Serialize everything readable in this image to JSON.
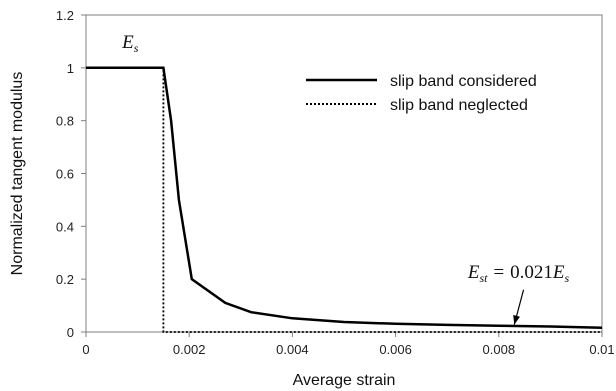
{
  "chart_data": {
    "type": "line",
    "title": "",
    "xlabel": "Average strain",
    "ylabel": "Normalized tangent modulus",
    "xlim": [
      0,
      0.01
    ],
    "ylim": [
      0,
      1.2
    ],
    "x_ticks": [
      0,
      0.002,
      0.004,
      0.006,
      0.008,
      0.01
    ],
    "x_tick_labels": [
      "0",
      "0.002",
      "0.004",
      "0.006",
      "0.008",
      "0.01"
    ],
    "y_ticks": [
      0,
      0.2,
      0.4,
      0.6,
      0.8,
      1,
      1.2
    ],
    "y_tick_labels": [
      "0",
      "0.2",
      "0.4",
      "0.6",
      "0.8",
      "1",
      "1.2"
    ],
    "grid": false,
    "legend_position": "top-right",
    "series": [
      {
        "name": "slip band considered",
        "style": "solid",
        "color": "#000000",
        "points": [
          [
            0,
            1
          ],
          [
            0.0015,
            1
          ],
          [
            0.00165,
            0.8
          ],
          [
            0.0018,
            0.5
          ],
          [
            0.00205,
            0.2
          ],
          [
            0.0027,
            0.11
          ],
          [
            0.0032,
            0.075
          ],
          [
            0.004,
            0.052
          ],
          [
            0.005,
            0.038
          ],
          [
            0.006,
            0.031
          ],
          [
            0.007,
            0.027
          ],
          [
            0.008,
            0.024
          ],
          [
            0.009,
            0.021
          ],
          [
            0.01,
            0.016
          ]
        ]
      },
      {
        "name": "slip band neglected",
        "style": "dotted",
        "color": "#000000",
        "points": [
          [
            0,
            1
          ],
          [
            0.0015,
            1
          ],
          [
            0.0015,
            0
          ],
          [
            0.01,
            0
          ]
        ]
      }
    ],
    "annotations": [
      {
        "id": "es",
        "base": "E",
        "sub": "s",
        "x": 0.0007,
        "y": 1.075
      },
      {
        "id": "est",
        "lhs_base": "E",
        "lhs_sub": "st",
        "equals": "=",
        "coef": "0.021",
        "rhs_base": "E",
        "rhs_sub": "s",
        "x": 0.0074,
        "y": 0.205,
        "arrow_to": [
          0.0083,
          0.028
        ]
      }
    ]
  }
}
